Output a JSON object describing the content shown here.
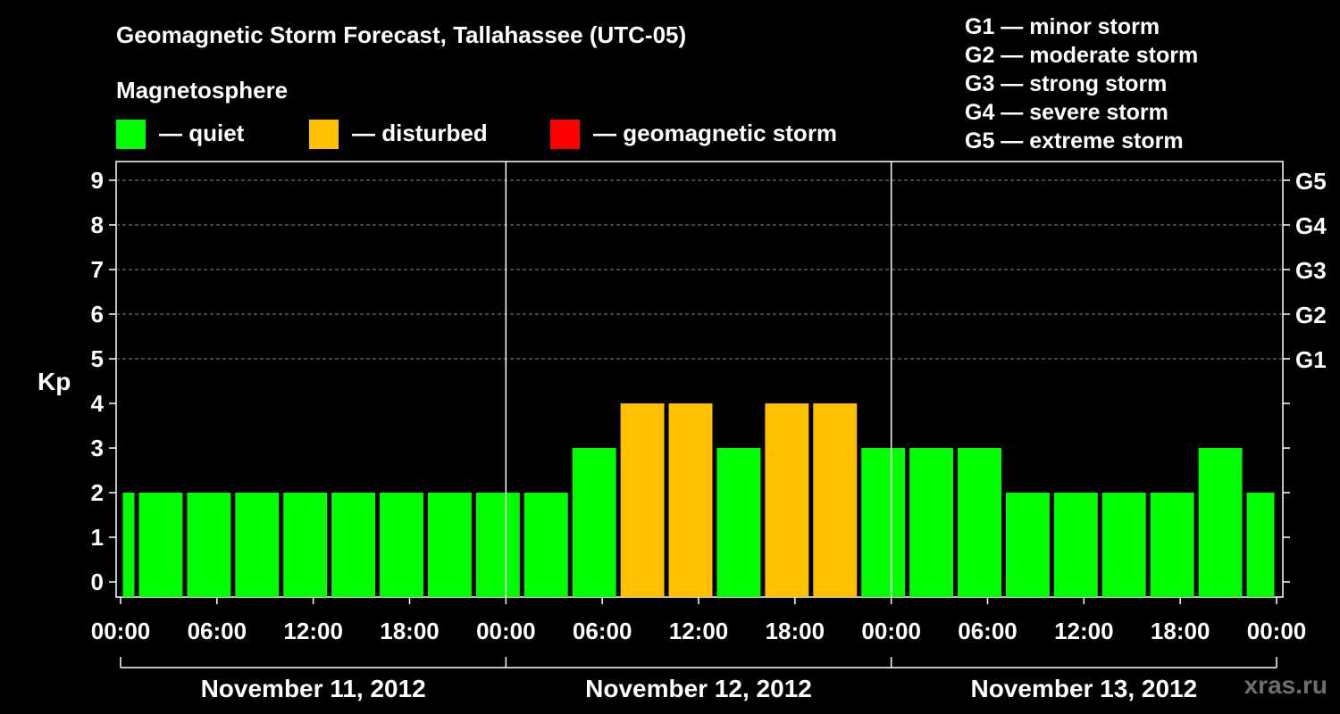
{
  "title": "Geomagnetic Storm Forecast, Tallahassee (UTC-05)",
  "subtitle": "Magnetosphere",
  "legend": [
    {
      "color": "#00ff00",
      "label": "— quiet"
    },
    {
      "color": "#ffc000",
      "label": "— disturbed"
    },
    {
      "color": "#ff0000",
      "label": "— geomagnetic storm"
    }
  ],
  "g_scale": [
    "G1 — minor storm",
    "G2 — moderate storm",
    "G3 — strong storm",
    "G4 — severe storm",
    "G5 — extreme storm"
  ],
  "watermark": "xras.ru",
  "chart_data": {
    "type": "bar",
    "title": "Geomagnetic Storm Forecast, Tallahassee (UTC-05)",
    "ylabel": "Kp",
    "ylim": [
      0,
      9
    ],
    "yticks": [
      0,
      1,
      2,
      3,
      4,
      5,
      6,
      7,
      8,
      9
    ],
    "right_ticks": [
      {
        "kp": 5,
        "label": "G1"
      },
      {
        "kp": 6,
        "label": "G2"
      },
      {
        "kp": 7,
        "label": "G3"
      },
      {
        "kp": 8,
        "label": "G4"
      },
      {
        "kp": 9,
        "label": "G5"
      }
    ],
    "x_range_hours": [
      0,
      72
    ],
    "xticks": [
      {
        "hour": 0,
        "label": "00:00"
      },
      {
        "hour": 6,
        "label": "06:00"
      },
      {
        "hour": 12,
        "label": "12:00"
      },
      {
        "hour": 18,
        "label": "18:00"
      },
      {
        "hour": 24,
        "label": "00:00"
      },
      {
        "hour": 30,
        "label": "06:00"
      },
      {
        "hour": 36,
        "label": "12:00"
      },
      {
        "hour": 42,
        "label": "18:00"
      },
      {
        "hour": 48,
        "label": "00:00"
      },
      {
        "hour": 54,
        "label": "06:00"
      },
      {
        "hour": 60,
        "label": "12:00"
      },
      {
        "hour": 66,
        "label": "18:00"
      },
      {
        "hour": 72,
        "label": "00:00"
      }
    ],
    "dates": [
      {
        "start": 0,
        "end": 24,
        "label": "November 11, 2012"
      },
      {
        "start": 24,
        "end": 48,
        "label": "November 12, 2012"
      },
      {
        "start": 48,
        "end": 72,
        "label": "November 13, 2012"
      }
    ],
    "day_separators": [
      24,
      48
    ],
    "grid_levels": [
      5,
      6,
      7,
      8,
      9
    ],
    "bars": [
      {
        "start": 0,
        "end": 1,
        "kp": 2,
        "status": "quiet"
      },
      {
        "start": 1,
        "end": 4,
        "kp": 2,
        "status": "quiet"
      },
      {
        "start": 4,
        "end": 7,
        "kp": 2,
        "status": "quiet"
      },
      {
        "start": 7,
        "end": 10,
        "kp": 2,
        "status": "quiet"
      },
      {
        "start": 10,
        "end": 13,
        "kp": 2,
        "status": "quiet"
      },
      {
        "start": 13,
        "end": 16,
        "kp": 2,
        "status": "quiet"
      },
      {
        "start": 16,
        "end": 19,
        "kp": 2,
        "status": "quiet"
      },
      {
        "start": 19,
        "end": 22,
        "kp": 2,
        "status": "quiet"
      },
      {
        "start": 22,
        "end": 25,
        "kp": 2,
        "status": "quiet"
      },
      {
        "start": 25,
        "end": 28,
        "kp": 2,
        "status": "quiet"
      },
      {
        "start": 28,
        "end": 31,
        "kp": 3,
        "status": "quiet"
      },
      {
        "start": 31,
        "end": 34,
        "kp": 4,
        "status": "disturbed"
      },
      {
        "start": 34,
        "end": 37,
        "kp": 4,
        "status": "disturbed"
      },
      {
        "start": 37,
        "end": 40,
        "kp": 3,
        "status": "quiet"
      },
      {
        "start": 40,
        "end": 43,
        "kp": 4,
        "status": "disturbed"
      },
      {
        "start": 43,
        "end": 46,
        "kp": 4,
        "status": "disturbed"
      },
      {
        "start": 46,
        "end": 49,
        "kp": 3,
        "status": "quiet"
      },
      {
        "start": 49,
        "end": 52,
        "kp": 3,
        "status": "quiet"
      },
      {
        "start": 52,
        "end": 55,
        "kp": 3,
        "status": "quiet"
      },
      {
        "start": 55,
        "end": 58,
        "kp": 2,
        "status": "quiet"
      },
      {
        "start": 58,
        "end": 61,
        "kp": 2,
        "status": "quiet"
      },
      {
        "start": 61,
        "end": 64,
        "kp": 2,
        "status": "quiet"
      },
      {
        "start": 64,
        "end": 67,
        "kp": 2,
        "status": "quiet"
      },
      {
        "start": 67,
        "end": 70,
        "kp": 3,
        "status": "quiet"
      },
      {
        "start": 70,
        "end": 72,
        "kp": 2,
        "status": "quiet"
      }
    ],
    "status_colors": {
      "quiet": "#00ff00",
      "disturbed": "#ffc000",
      "storm": "#ff0000"
    }
  }
}
